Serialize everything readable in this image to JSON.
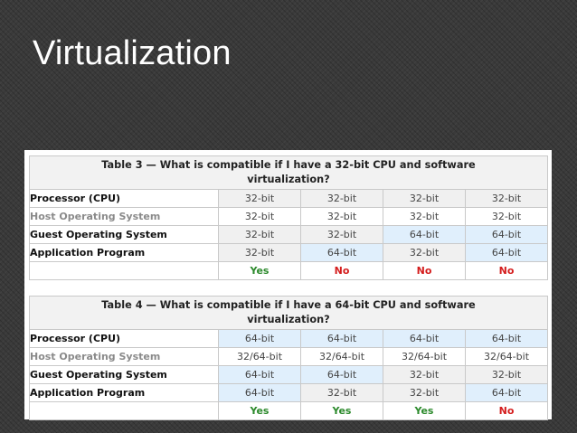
{
  "slide": {
    "title": "Virtualization"
  },
  "tables": [
    {
      "caption": "Table 3 — What is compatible if I have a 32-bit CPU and software virtualization?",
      "rows": [
        {
          "label": "Processor (CPU)",
          "cells": [
            "32-bit",
            "32-bit",
            "32-bit",
            "32-bit"
          ]
        },
        {
          "label": "Host Operating System",
          "cells": [
            "32-bit",
            "32-bit",
            "32-bit",
            "32-bit"
          ]
        },
        {
          "label": "Guest Operating System",
          "cells": [
            "32-bit",
            "32-bit",
            "64-bit",
            "64-bit"
          ]
        },
        {
          "label": "Application Program",
          "cells": [
            "32-bit",
            "64-bit",
            "32-bit",
            "64-bit"
          ]
        }
      ],
      "results": [
        "Yes",
        "No",
        "No",
        "No"
      ]
    },
    {
      "caption": "Table 4 — What is compatible if I have a 64-bit CPU and software virtualization?",
      "rows": [
        {
          "label": "Processor (CPU)",
          "cells": [
            "64-bit",
            "64-bit",
            "64-bit",
            "64-bit"
          ]
        },
        {
          "label": "Host Operating System",
          "cells": [
            "32/64-bit",
            "32/64-bit",
            "32/64-bit",
            "32/64-bit"
          ]
        },
        {
          "label": "Guest Operating System",
          "cells": [
            "64-bit",
            "64-bit",
            "32-bit",
            "32-bit"
          ]
        },
        {
          "label": "Application Program",
          "cells": [
            "64-bit",
            "32-bit",
            "32-bit",
            "64-bit"
          ]
        }
      ],
      "results": [
        "Yes",
        "Yes",
        "Yes",
        "No"
      ]
    }
  ],
  "colors": {
    "background": "#3a3a3a",
    "blue_cell": "#e0effc",
    "gray_cell": "#f0f0f0",
    "yes": "#2c8a2c",
    "no": "#d41c1c"
  }
}
